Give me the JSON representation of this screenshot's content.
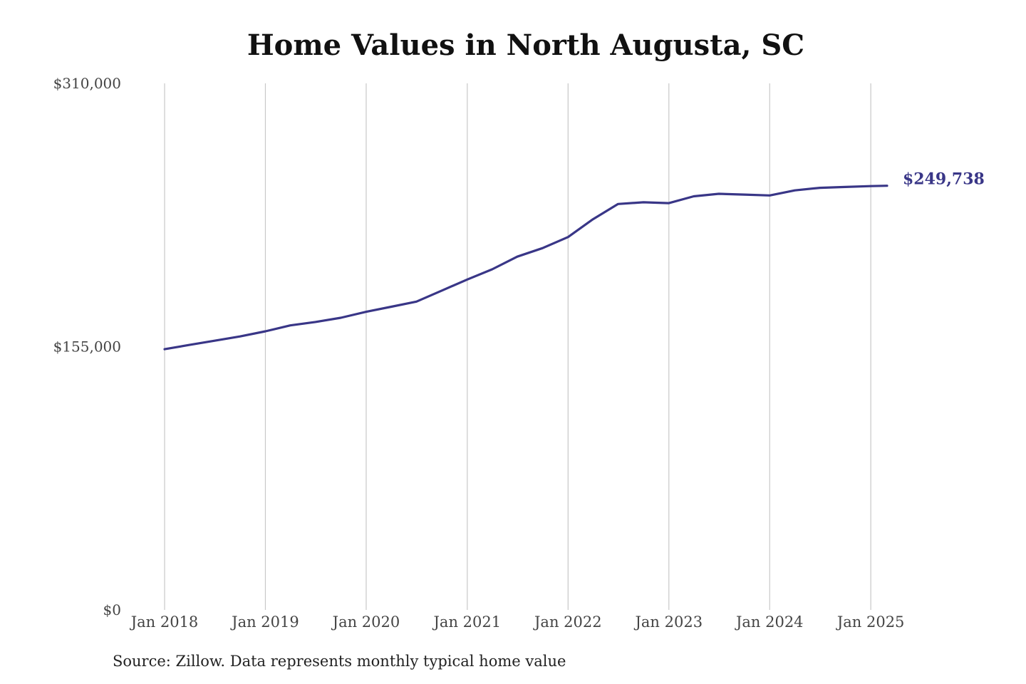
{
  "chart_data": {
    "type": "line",
    "title": "Home Values in North Augusta, SC",
    "source": "Source: Zillow. Data represents monthly typical home value",
    "ylim": [
      0,
      310000
    ],
    "xlim": [
      "2018-01-01",
      "2025-03-01"
    ],
    "y_ticks": [
      {
        "value": 0,
        "label": "$0"
      },
      {
        "value": 155000,
        "label": "$155,000"
      },
      {
        "value": 310000,
        "label": "$310,000"
      }
    ],
    "x_ticks": [
      {
        "date": "2018-01-01",
        "label": "Jan 2018"
      },
      {
        "date": "2019-01-01",
        "label": "Jan 2019"
      },
      {
        "date": "2020-01-01",
        "label": "Jan 2020"
      },
      {
        "date": "2021-01-01",
        "label": "Jan 2021"
      },
      {
        "date": "2022-01-01",
        "label": "Jan 2022"
      },
      {
        "date": "2023-01-01",
        "label": "Jan 2023"
      },
      {
        "date": "2024-01-01",
        "label": "Jan 2024"
      },
      {
        "date": "2025-01-01",
        "label": "Jan 2025"
      }
    ],
    "grid": {
      "vertical": true,
      "horizontal": false
    },
    "line_color": "#393687",
    "end_label": "$249,738",
    "series": [
      {
        "points": [
          {
            "date": "2018-01-01",
            "value": 153500
          },
          {
            "date": "2018-04-01",
            "value": 156000
          },
          {
            "date": "2018-07-01",
            "value": 158500
          },
          {
            "date": "2018-10-01",
            "value": 161000
          },
          {
            "date": "2019-01-01",
            "value": 164000
          },
          {
            "date": "2019-04-01",
            "value": 167500
          },
          {
            "date": "2019-07-01",
            "value": 169500
          },
          {
            "date": "2019-10-01",
            "value": 172000
          },
          {
            "date": "2020-01-01",
            "value": 175500
          },
          {
            "date": "2020-04-01",
            "value": 178500
          },
          {
            "date": "2020-07-01",
            "value": 181500
          },
          {
            "date": "2020-10-01",
            "value": 188000
          },
          {
            "date": "2021-01-01",
            "value": 194500
          },
          {
            "date": "2021-04-01",
            "value": 200500
          },
          {
            "date": "2021-07-01",
            "value": 208000
          },
          {
            "date": "2021-10-01",
            "value": 213000
          },
          {
            "date": "2022-01-01",
            "value": 219500
          },
          {
            "date": "2022-04-01",
            "value": 230000
          },
          {
            "date": "2022-07-01",
            "value": 239000
          },
          {
            "date": "2022-10-01",
            "value": 240000
          },
          {
            "date": "2023-01-01",
            "value": 239500
          },
          {
            "date": "2023-04-01",
            "value": 243500
          },
          {
            "date": "2023-07-01",
            "value": 245000
          },
          {
            "date": "2023-10-01",
            "value": 244500
          },
          {
            "date": "2024-01-01",
            "value": 244000
          },
          {
            "date": "2024-04-01",
            "value": 247000
          },
          {
            "date": "2024-07-01",
            "value": 248500
          },
          {
            "date": "2024-10-01",
            "value": 249000
          },
          {
            "date": "2025-01-01",
            "value": 249500
          },
          {
            "date": "2025-03-01",
            "value": 249738
          }
        ]
      }
    ]
  }
}
